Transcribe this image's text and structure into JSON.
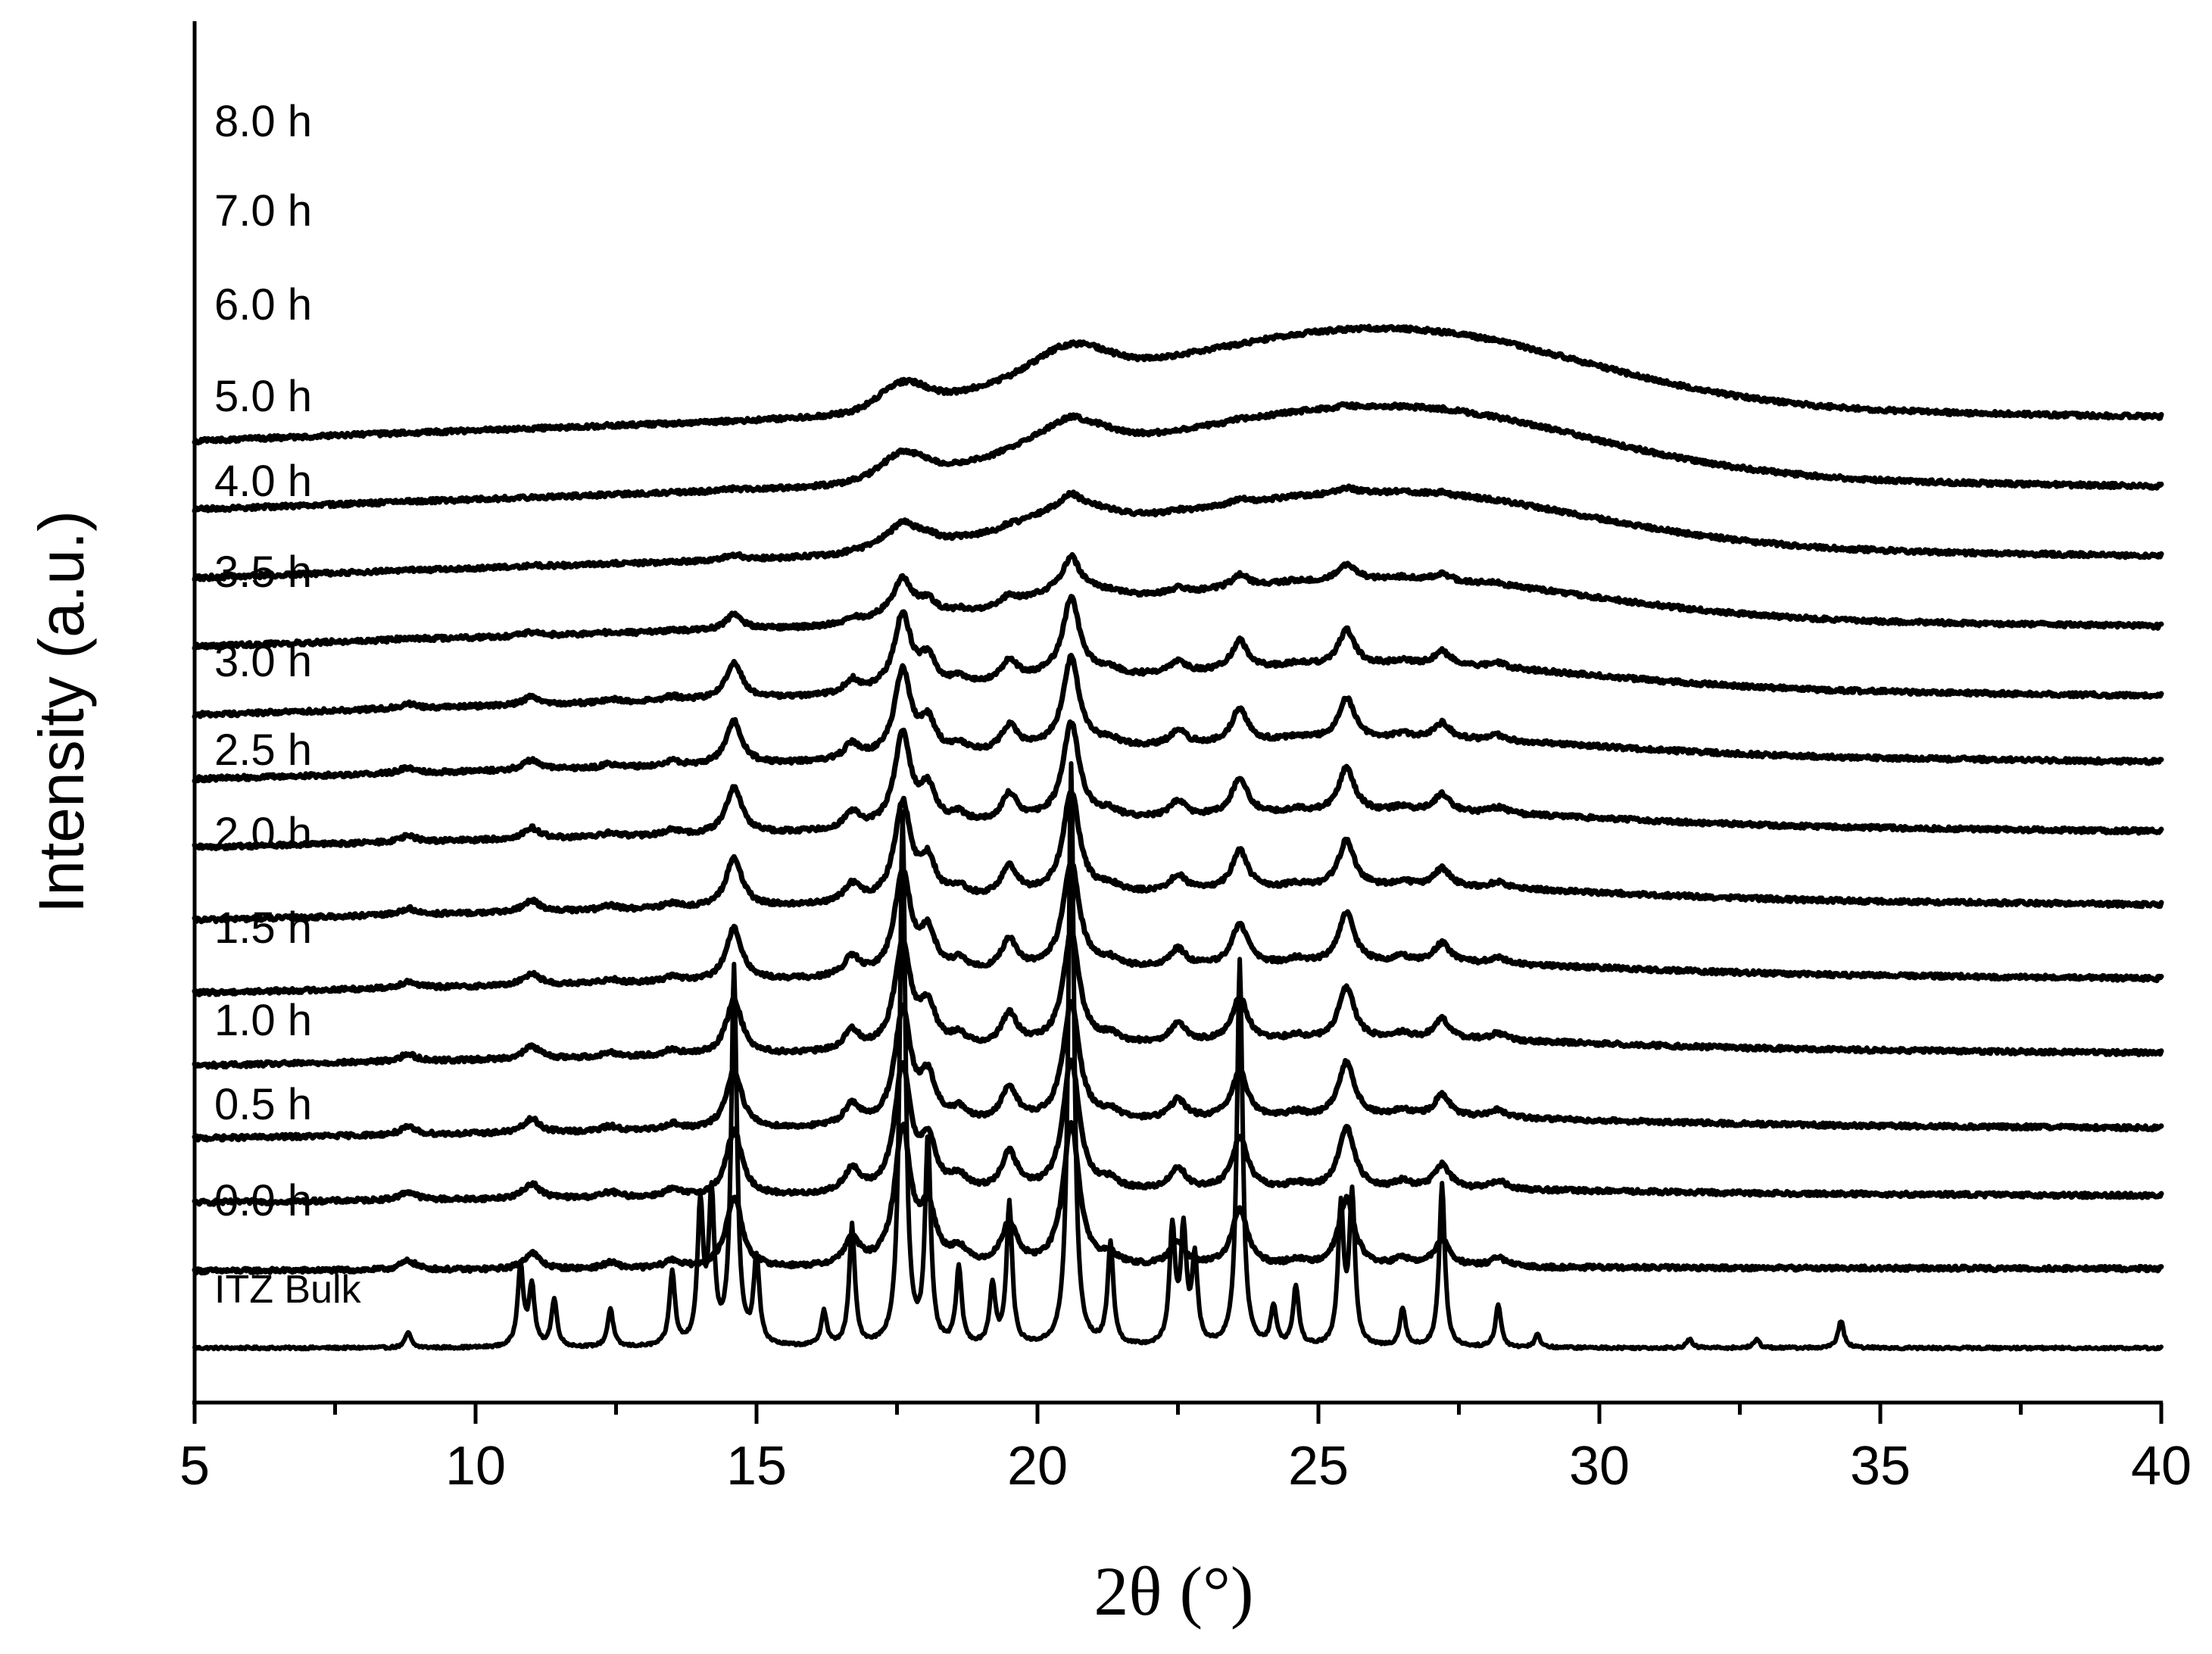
{
  "chart_data": {
    "type": "line",
    "title": "",
    "xlabel": "2θ (°)",
    "ylabel": "Intensity (a.u.)",
    "xlim": [
      5,
      40
    ],
    "x_ticks": [
      5,
      10,
      15,
      20,
      25,
      30,
      35,
      40
    ],
    "x_tick_labels": [
      "5",
      "10",
      "15",
      "20",
      "25",
      "30",
      "35",
      "40"
    ],
    "grid": false,
    "legend": "series labels written above each trace at left",
    "stacked_offset": true,
    "peak_positions": [
      8.8,
      10.8,
      11.0,
      11.4,
      12.4,
      13.5,
      14.0,
      14.2,
      14.6,
      15.0,
      16.2,
      16.7,
      17.6,
      18.05,
      18.6,
      19.2,
      19.5,
      20.6,
      21.3,
      22.4,
      22.6,
      22.8,
      23.6,
      24.2,
      24.6,
      25.4,
      25.6,
      26.5,
      27.2,
      28.2,
      28.9,
      31.6,
      32.8,
      34.3
    ],
    "series": [
      {
        "name": "ITZ Bulk",
        "baseline": 0.0,
        "slope": 0.0,
        "hump": 0.0,
        "crystallinity": 1.0
      },
      {
        "name": "0.0 h",
        "baseline": 0.9,
        "slope": 0.04,
        "hump": 0.0,
        "crystallinity": 0.55
      },
      {
        "name": "0.5 h",
        "baseline": 1.7,
        "slope": 0.12,
        "hump": 0.02,
        "crystallinity": 0.5
      },
      {
        "name": "1.0 h",
        "baseline": 2.45,
        "slope": 0.18,
        "hump": 0.04,
        "crystallinity": 0.45
      },
      {
        "name": "1.5 h",
        "baseline": 3.3,
        "slope": 0.22,
        "hump": 0.05,
        "crystallinity": 0.42
      },
      {
        "name": "2.0 h",
        "baseline": 4.15,
        "slope": 0.25,
        "hump": 0.06,
        "crystallinity": 0.4
      },
      {
        "name": "2.5 h",
        "baseline": 5.0,
        "slope": 0.27,
        "hump": 0.07,
        "crystallinity": 0.38
      },
      {
        "name": "3.0 h",
        "baseline": 5.85,
        "slope": 0.28,
        "hump": 0.08,
        "crystallinity": 0.36
      },
      {
        "name": "3.5 h",
        "baseline": 6.65,
        "slope": 0.3,
        "hump": 0.1,
        "crystallinity": 0.33
      },
      {
        "name": "4.0 h",
        "baseline": 7.4,
        "slope": 0.33,
        "hump": 0.15,
        "crystallinity": 0.28
      },
      {
        "name": "5.0 h",
        "baseline": 8.2,
        "slope": 0.35,
        "hump": 0.25,
        "crystallinity": 0.12
      },
      {
        "name": "6.0 h",
        "baseline": 9.0,
        "slope": 0.38,
        "hump": 0.35,
        "crystallinity": 0.04
      },
      {
        "name": "7.0 h",
        "baseline": 9.8,
        "slope": 0.4,
        "hump": 0.45,
        "crystallinity": 0.015
      },
      {
        "name": "8.0 h",
        "baseline": 10.6,
        "slope": 0.42,
        "hump": 0.5,
        "crystallinity": 0.0
      }
    ]
  }
}
